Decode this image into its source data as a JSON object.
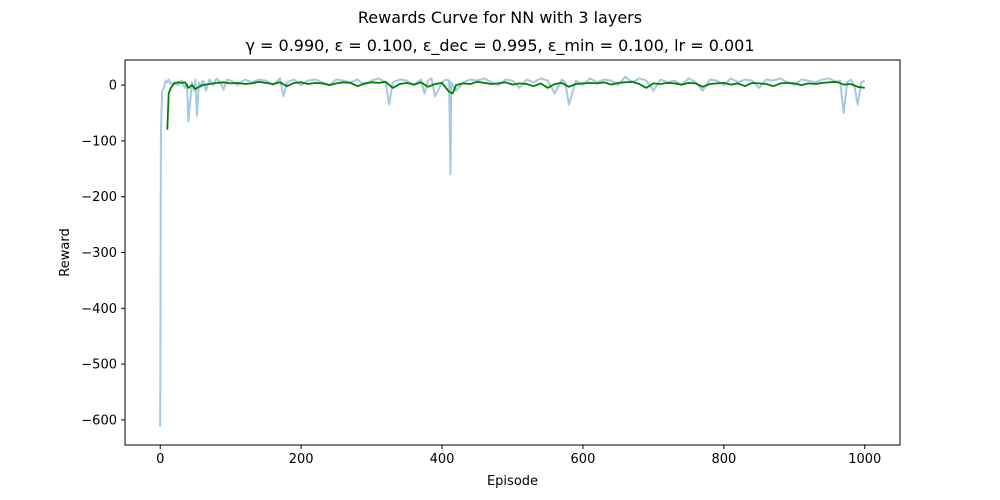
{
  "figure": {
    "suptitle": "Rewards Curve for NN with 3 layers",
    "subtitle": "γ = 0.990, ε = 0.100, ε_dec = 0.995, ε_min = 0.100, lr = 0.001"
  },
  "chart_data": {
    "type": "line",
    "title": "γ = 0.990, ε = 0.100, ε_dec = 0.995, ε_min = 0.100, lr = 0.001",
    "suptitle": "Rewards Curve for NN with 3 layers",
    "xlabel": "Episode",
    "ylabel": "Reward",
    "xlim": [
      -50,
      1050
    ],
    "ylim": [
      -645,
      45
    ],
    "xticks": [
      0,
      200,
      400,
      600,
      800,
      1000
    ],
    "xtick_labels": [
      "0",
      "200",
      "400",
      "600",
      "800",
      "1000"
    ],
    "yticks": [
      0,
      -100,
      -200,
      -300,
      -400,
      -500,
      -600
    ],
    "ytick_labels": [
      "0",
      "−100",
      "−200",
      "−300",
      "−400",
      "−500",
      "−600"
    ],
    "grid": false,
    "legend": "none",
    "series": [
      {
        "role": "raw",
        "color": "#a6c8e0",
        "x": [
          0,
          1,
          2,
          3,
          5,
          8,
          10,
          12,
          15,
          20,
          25,
          30,
          35,
          38,
          40,
          45,
          48,
          50,
          52,
          55,
          58,
          60,
          62,
          65,
          70,
          75,
          80,
          85,
          90,
          95,
          100,
          110,
          120,
          130,
          140,
          150,
          160,
          170,
          175,
          180,
          190,
          200,
          210,
          220,
          230,
          240,
          250,
          260,
          270,
          280,
          290,
          300,
          310,
          320,
          325,
          330,
          340,
          350,
          360,
          370,
          375,
          380,
          385,
          390,
          400,
          405,
          410,
          412,
          413,
          415,
          420,
          430,
          440,
          450,
          460,
          470,
          480,
          490,
          500,
          510,
          520,
          530,
          540,
          550,
          560,
          570,
          575,
          580,
          590,
          600,
          610,
          620,
          630,
          640,
          650,
          660,
          670,
          680,
          690,
          700,
          710,
          720,
          730,
          740,
          750,
          760,
          770,
          780,
          790,
          800,
          810,
          820,
          830,
          840,
          850,
          860,
          870,
          880,
          890,
          900,
          910,
          920,
          930,
          940,
          950,
          960,
          965,
          970,
          975,
          980,
          985,
          990,
          995,
          1000
        ],
        "y": [
          -612,
          -90,
          -40,
          -10,
          -5,
          8,
          5,
          10,
          2,
          5,
          0,
          8,
          -5,
          3,
          -65,
          5,
          -10,
          10,
          -55,
          5,
          -3,
          8,
          5,
          -10,
          10,
          0,
          12,
          5,
          -8,
          10,
          8,
          0,
          10,
          5,
          10,
          8,
          0,
          12,
          -20,
          5,
          10,
          0,
          8,
          10,
          5,
          0,
          10,
          8,
          5,
          10,
          0,
          8,
          12,
          5,
          -35,
          5,
          10,
          8,
          0,
          10,
          -15,
          8,
          12,
          -20,
          5,
          10,
          8,
          -160,
          5,
          0,
          -10,
          5,
          10,
          8,
          12,
          5,
          0,
          10,
          8,
          -5,
          10,
          5,
          12,
          8,
          -15,
          10,
          5,
          -35,
          8,
          0,
          12,
          5,
          10,
          8,
          0,
          15,
          5,
          12,
          8,
          -10,
          10,
          5,
          8,
          0,
          12,
          5,
          -10,
          10,
          8,
          0,
          12,
          5,
          10,
          8,
          -5,
          10,
          8,
          12,
          5,
          0,
          10,
          8,
          5,
          10,
          12,
          5,
          8,
          -50,
          5,
          10,
          0,
          -35,
          5,
          8
        ]
      },
      {
        "role": "moving-average",
        "color": "#008000",
        "x": [
          10,
          12,
          15,
          18,
          20,
          25,
          30,
          35,
          40,
          45,
          50,
          55,
          60,
          70,
          80,
          90,
          100,
          110,
          120,
          130,
          140,
          150,
          160,
          170,
          180,
          190,
          200,
          210,
          220,
          230,
          240,
          250,
          260,
          270,
          280,
          290,
          300,
          310,
          320,
          330,
          340,
          350,
          360,
          370,
          380,
          390,
          400,
          410,
          415,
          420,
          430,
          440,
          450,
          460,
          470,
          480,
          490,
          500,
          510,
          520,
          530,
          540,
          550,
          560,
          570,
          580,
          590,
          600,
          610,
          620,
          630,
          640,
          650,
          660,
          670,
          680,
          690,
          700,
          710,
          720,
          730,
          740,
          750,
          760,
          770,
          780,
          790,
          800,
          810,
          820,
          830,
          840,
          850,
          860,
          870,
          880,
          890,
          900,
          910,
          920,
          930,
          940,
          950,
          960,
          970,
          980,
          990,
          1000
        ],
        "y": [
          -80,
          -15,
          -5,
          0,
          3,
          5,
          4,
          5,
          -5,
          0,
          -7,
          -3,
          0,
          2,
          4,
          5,
          3,
          4,
          2,
          3,
          6,
          4,
          2,
          5,
          -2,
          4,
          5,
          2,
          4,
          3,
          0,
          3,
          5,
          4,
          -2,
          3,
          5,
          4,
          6,
          -5,
          2,
          4,
          1,
          5,
          -3,
          2,
          4,
          -12,
          -15,
          0,
          3,
          2,
          6,
          4,
          2,
          3,
          5,
          1,
          3,
          2,
          -2,
          3,
          -5,
          2,
          4,
          -3,
          2,
          3,
          4,
          3,
          5,
          1,
          4,
          5,
          6,
          2,
          -5,
          3,
          2,
          4,
          3,
          1,
          4,
          3,
          -3,
          2,
          3,
          4,
          1,
          3,
          -2,
          4,
          3,
          2,
          -2,
          3,
          4,
          3,
          0,
          3,
          2,
          4,
          5,
          6,
          1,
          2,
          -3,
          -5
        ]
      }
    ]
  }
}
